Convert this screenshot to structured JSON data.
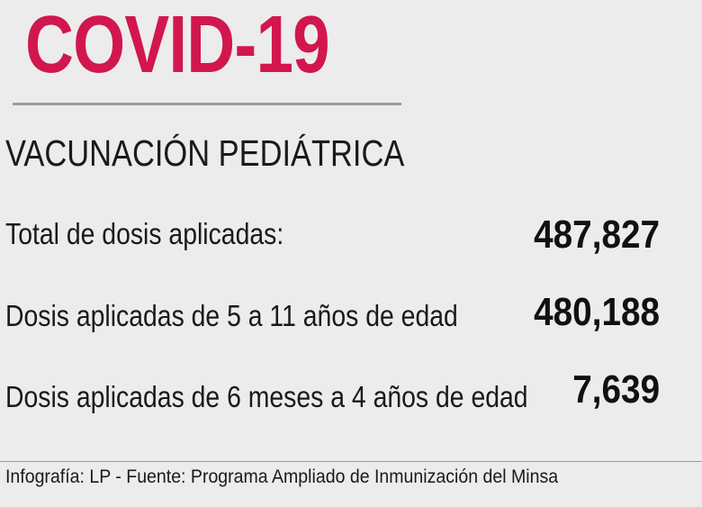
{
  "header": {
    "title": "COVID-19",
    "title_color": "#d2164e",
    "rule_color": "#9a9a9a"
  },
  "subtitle": "VACUNACIÓN PEDIÁTRICA",
  "stats": [
    {
      "label": "Total de dosis aplicadas:",
      "value": "487,827"
    },
    {
      "label": "Dosis aplicadas de 5 a 11 años de edad",
      "value": "480,188"
    },
    {
      "label": "Dosis aplicadas de 6 meses a 4 años de edad",
      "value": "7,639"
    }
  ],
  "footer": {
    "text": "Infografía: LP - Fuente: Programa Ampliado de Inmunización del Minsa",
    "rule_color": "#9a9a9a"
  }
}
